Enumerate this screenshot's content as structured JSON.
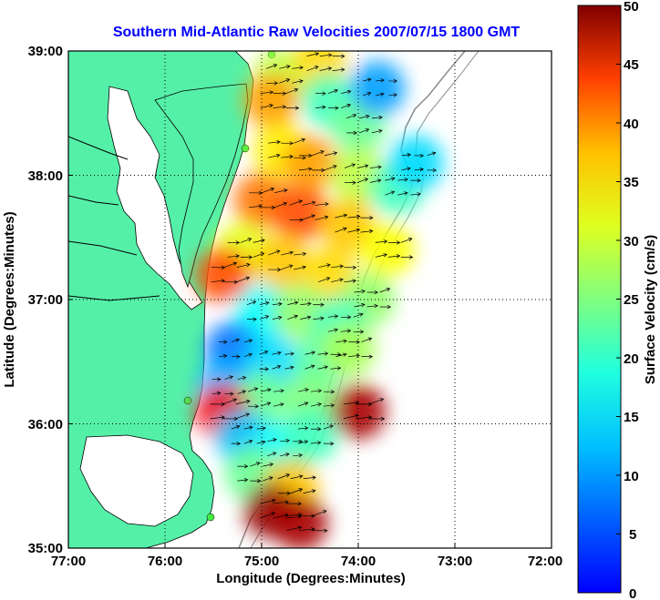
{
  "chart_data": {
    "type": "heatmap",
    "title": "Southern Mid-Atlantic Raw Velocities 2007/07/15 1800 GMT",
    "xlabel": "Longitude (Degrees:Minutes)",
    "ylabel": "Latitude (Degrees:Minutes)",
    "colorbar_label": "Surface Velocity (cm/s)",
    "x_ticks": [
      "77:00",
      "76:00",
      "75:00",
      "74:00",
      "73:00",
      "72:00"
    ],
    "y_ticks": [
      "39:00",
      "38:00",
      "37:00",
      "36:00",
      "35:00"
    ],
    "colorbar_ticks": [
      "0",
      "5",
      "10",
      "15",
      "20",
      "25",
      "30",
      "35",
      "40",
      "45",
      "50"
    ],
    "x_range_deg_west": [
      77,
      72
    ],
    "y_range_deg_north": [
      35,
      39
    ],
    "color_range_cm_s": [
      0,
      50
    ],
    "colormap": "jet",
    "grid": true,
    "land_color": "#55f0a8",
    "velocity_patches": [
      {
        "lon": -74.8,
        "lat": 38.8,
        "speed": 28
      },
      {
        "lon": -74.4,
        "lat": 38.9,
        "speed": 33
      },
      {
        "lon": -74.9,
        "lat": 38.6,
        "speed": 36
      },
      {
        "lon": -74.3,
        "lat": 38.6,
        "speed": 22
      },
      {
        "lon": -74.0,
        "lat": 38.4,
        "speed": 24
      },
      {
        "lon": -73.8,
        "lat": 38.7,
        "speed": 14
      },
      {
        "lon": -74.8,
        "lat": 38.2,
        "speed": 32
      },
      {
        "lon": -74.5,
        "lat": 38.1,
        "speed": 36
      },
      {
        "lon": -74.0,
        "lat": 38.0,
        "speed": 28
      },
      {
        "lon": -73.6,
        "lat": 37.9,
        "speed": 22
      },
      {
        "lon": -73.4,
        "lat": 38.1,
        "speed": 17
      },
      {
        "lon": -75.0,
        "lat": 37.8,
        "speed": 38
      },
      {
        "lon": -74.6,
        "lat": 37.7,
        "speed": 40
      },
      {
        "lon": -74.1,
        "lat": 37.6,
        "speed": 34
      },
      {
        "lon": -73.7,
        "lat": 37.4,
        "speed": 31
      },
      {
        "lon": -75.2,
        "lat": 37.4,
        "speed": 30
      },
      {
        "lon": -74.8,
        "lat": 37.3,
        "speed": 34
      },
      {
        "lon": -74.3,
        "lat": 37.2,
        "speed": 33
      },
      {
        "lon": -73.9,
        "lat": 37.0,
        "speed": 26
      },
      {
        "lon": -75.4,
        "lat": 37.2,
        "speed": 40
      },
      {
        "lon": -75.0,
        "lat": 36.9,
        "speed": 19
      },
      {
        "lon": -74.6,
        "lat": 36.9,
        "speed": 26
      },
      {
        "lon": -74.2,
        "lat": 36.8,
        "speed": 22
      },
      {
        "lon": -75.3,
        "lat": 36.6,
        "speed": 12
      },
      {
        "lon": -74.9,
        "lat": 36.5,
        "speed": 17
      },
      {
        "lon": -74.4,
        "lat": 36.5,
        "speed": 23
      },
      {
        "lon": -74.1,
        "lat": 36.6,
        "speed": 27
      },
      {
        "lon": -75.4,
        "lat": 36.3,
        "speed": 15
      },
      {
        "lon": -75.0,
        "lat": 36.2,
        "speed": 24
      },
      {
        "lon": -74.5,
        "lat": 36.2,
        "speed": 25
      },
      {
        "lon": -74.0,
        "lat": 36.1,
        "speed": 48
      },
      {
        "lon": -75.4,
        "lat": 36.1,
        "speed": 44
      },
      {
        "lon": -75.2,
        "lat": 35.9,
        "speed": 16
      },
      {
        "lon": -74.8,
        "lat": 35.8,
        "speed": 19
      },
      {
        "lon": -74.5,
        "lat": 35.9,
        "speed": 22
      },
      {
        "lon": -75.1,
        "lat": 35.6,
        "speed": 24
      },
      {
        "lon": -74.7,
        "lat": 35.5,
        "speed": 34
      },
      {
        "lon": -74.9,
        "lat": 35.3,
        "speed": 49
      },
      {
        "lon": -74.6,
        "lat": 35.2,
        "speed": 48
      }
    ]
  }
}
